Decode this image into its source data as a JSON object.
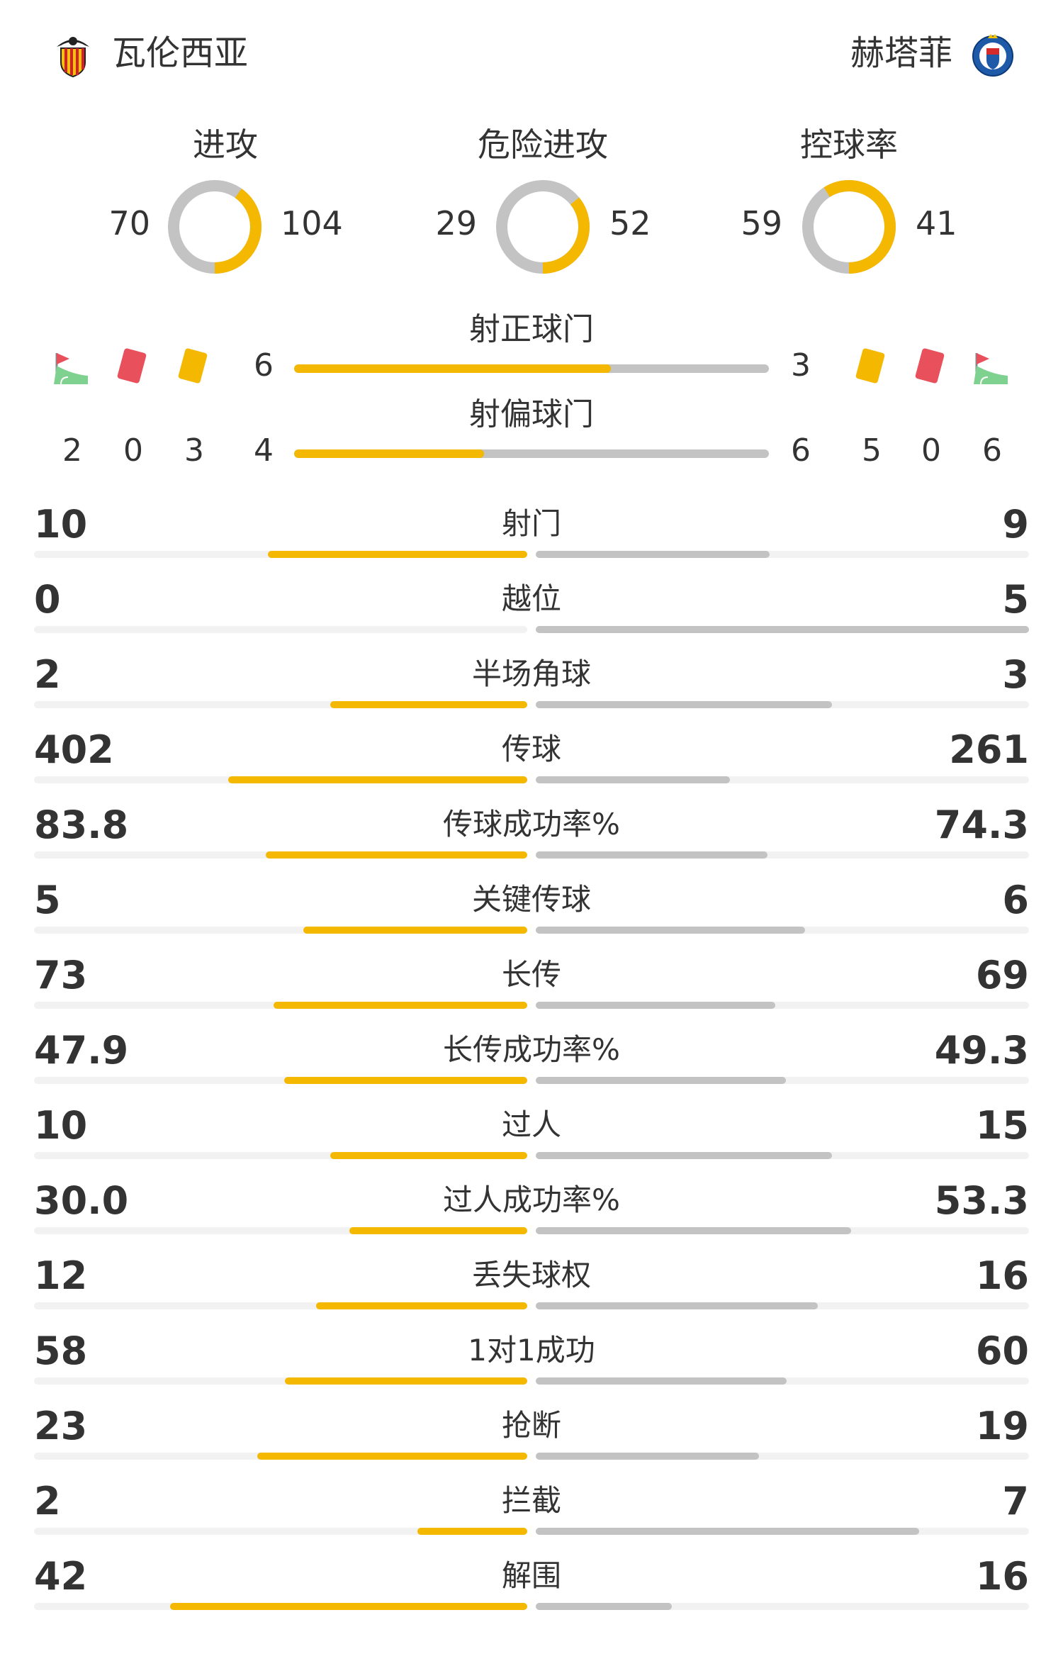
{
  "header": {
    "home_team": "瓦伦西亚",
    "away_team": "赫塔菲",
    "home_logo_icon": "valencia-bat-crest-icon",
    "away_logo_icon": "getafe-crest-icon"
  },
  "colors": {
    "home": "#f5b800",
    "away": "#c3c3c3",
    "track": "#f2f2f2"
  },
  "donuts": [
    {
      "title": "进攻",
      "home": 70,
      "away": 104
    },
    {
      "title": "危险进攻",
      "home": 29,
      "away": 52
    },
    {
      "title": "控球率",
      "home": 59,
      "away": 41
    }
  ],
  "shots": {
    "on_target": {
      "title": "射正球门",
      "home": 6,
      "away": 3
    },
    "off_target": {
      "title": "射偏球门",
      "home": 4,
      "away": 6
    }
  },
  "discipline": {
    "home": {
      "corners": 2,
      "red_cards": 0,
      "yellow_cards": 3
    },
    "away": {
      "yellow_cards": 5,
      "red_cards": 0,
      "corners": 6
    },
    "icons": {
      "corner": "corner-flag-icon",
      "red": "red-card-icon",
      "yellow": "yellow-card-icon"
    }
  },
  "stats": [
    {
      "label": "射门",
      "home": "10",
      "away": "9"
    },
    {
      "label": "越位",
      "home": "0",
      "away": "5"
    },
    {
      "label": "半场角球",
      "home": "2",
      "away": "3"
    },
    {
      "label": "传球",
      "home": "402",
      "away": "261"
    },
    {
      "label": "传球成功率%",
      "home": "83.8",
      "away": "74.3"
    },
    {
      "label": "关键传球",
      "home": "5",
      "away": "6"
    },
    {
      "label": "长传",
      "home": "73",
      "away": "69"
    },
    {
      "label": "长传成功率%",
      "home": "47.9",
      "away": "49.3"
    },
    {
      "label": "过人",
      "home": "10",
      "away": "15"
    },
    {
      "label": "过人成功率%",
      "home": "30.0",
      "away": "53.3"
    },
    {
      "label": "丢失球权",
      "home": "12",
      "away": "16"
    },
    {
      "label": "1对1成功",
      "home": "58",
      "away": "60"
    },
    {
      "label": "抢断",
      "home": "23",
      "away": "19"
    },
    {
      "label": "拦截",
      "home": "2",
      "away": "7"
    },
    {
      "label": "解围",
      "home": "42",
      "away": "16"
    }
  ]
}
